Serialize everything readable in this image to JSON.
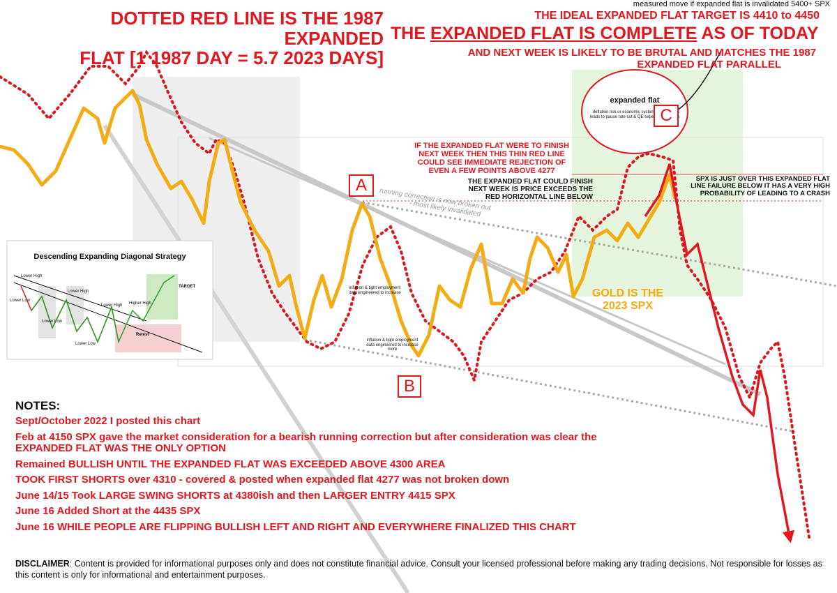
{
  "header": {
    "left_title": [
      "DOTTED RED LINE IS THE 1987 EXPANDED",
      "FLAT [1 1987 DAY = 5.7 2023 DAYS]"
    ],
    "measured_move": "measured move if expanded flat is invalidated 5400+ SPX",
    "target": "THE IDEAL EXPANDED FLAT TARGET IS 4410 to 4450",
    "complete": [
      "THE ",
      "EXPANDED FLAT IS COMPLETE",
      " AS OF TODAY"
    ],
    "brutal": [
      "AND NEXT WEEK IS LIKELY TO BE BRUTAL AND MATCHES THE 1987",
      "EXPANDED FLAT PARALLEL"
    ]
  },
  "annotations": {
    "circle_title": "expanded flat",
    "circle_text": "deflation risk or economic systemic event risk leads to pause rate cut & QE expectations begin",
    "label_a": "A",
    "label_b": "B",
    "label_c": "C",
    "thin_red_line": [
      "IF THE EXPANDED FLAT WERE TO FINISH",
      "NEXT WEEK THEN THIS THIN RED LINE",
      "COULD SEE IMMEDIATE REJECTION OF",
      "EVEN A FEW POINTS ABOVE 4277"
    ],
    "could_finish": [
      "THE EXPANDED FLAT COULD FINISH",
      "NEXT WEEK IS PRICE EXCEEDS THE",
      "RED HORIZONTAL LINE BELOW"
    ],
    "running_correction": [
      "running correction is now broken out",
      "- most likely invalidated"
    ],
    "spx_over": [
      "SPX IS JUST OVER THIS EXPANDED FLAT",
      "LINE FAILURE BELOW IT HAS A VERY HIGH",
      "PROBABILITY OF LEADING TO A CRASH"
    ],
    "gold": [
      "GOLD IS THE",
      "2023 SPX"
    ],
    "inflation_1": "inflation & tight employment data engineered to increase",
    "inflation_2": "inflation & tight employment data engineered to increase more"
  },
  "inset": {
    "title": "Descending Expanding Diagonal  Strategy",
    "labels": [
      "Lower High",
      "Lower Low",
      "Lower High",
      "Lower Low",
      "Lower High",
      "Higher High",
      "Lower Low",
      "Retest",
      "TARGET"
    ]
  },
  "notes": {
    "heading": "NOTES:",
    "lines": [
      "Sept/October 2022 I posted this chart",
      "Feb at 4150 SPX gave the market consideration for a bearish running correction but after consideration was clear the EXPANDED FLAT WAS THE ONLY OPTION",
      "Remained BULLISH UNTIL THE EXPANDED FLAT WAS EXCEEDED ABOVE 4300 AREA",
      "TOOK FIRST SHORTS over 4310 - covered & posted when expanded flat 4277 was not broken down",
      "June 14/15 Took LARGE SWING SHORTS at 4380ish and then LARGER ENTRY 4415 SPX",
      "June 16 Added Short at the 4435 SPX",
      "June 16 WHILE PEOPLE ARE FLIPPING BULLISH LEFT AND RIGHT AND EVERYWHERE FINALIZED THIS CHART"
    ]
  },
  "disclaimer": {
    "label": "DISCLAIMER",
    "text": ": Content is provided for informational purposes only and does not constitute financial advice. Consult your licensed professional before making any trading decisions. Not responsible for losses as this content is only for informational and entertainment purposes."
  }
}
